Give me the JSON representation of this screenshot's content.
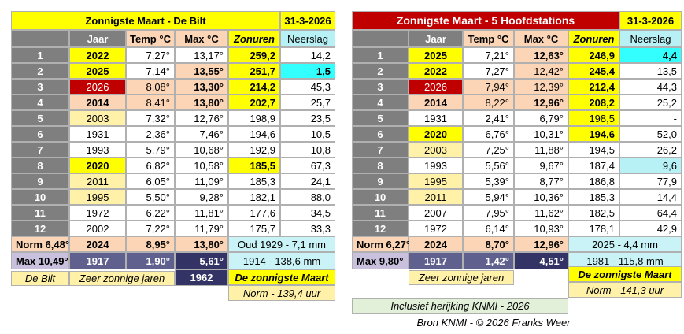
{
  "left": {
    "title": "Zonnigste Maart - De Bilt",
    "date": "31-3-2026",
    "columns": [
      "Jaar",
      "Temp °C",
      "Max °C",
      "Zonuren",
      "Neerslag"
    ],
    "rows": [
      [
        "1",
        "2022",
        "7,27°",
        "13,17°",
        "259,2",
        "14,2"
      ],
      [
        "2",
        "2025",
        "7,14°",
        "13,55°",
        "251,7",
        "1,5"
      ],
      [
        "3",
        "2026",
        "8,08°",
        "13,30°",
        "214,2",
        "45,3"
      ],
      [
        "4",
        "2014",
        "8,41°",
        "13,80°",
        "202,7",
        "25,7"
      ],
      [
        "5",
        "2003",
        "7,32°",
        "12,76°",
        "198,9",
        "23,5"
      ],
      [
        "6",
        "1931",
        "2,36°",
        "7,46°",
        "194,6",
        "10,5"
      ],
      [
        "7",
        "1993",
        "5,79°",
        "10,68°",
        "192,9",
        "10,8"
      ],
      [
        "8",
        "2020",
        "6,82°",
        "10,58°",
        "185,5",
        "67,3"
      ],
      [
        "9",
        "2011",
        "6,05°",
        "11,09°",
        "185,3",
        "24,1"
      ],
      [
        "10",
        "1995",
        "5,50°",
        "9,28°",
        "182,1",
        "88,0"
      ],
      [
        "11",
        "1972",
        "6,22°",
        "11,81°",
        "177,6",
        "34,5"
      ],
      [
        "12",
        "2002",
        "7,22°",
        "11,79°",
        "175,7",
        "33,3"
      ]
    ],
    "norm": [
      "Norm 6,48°",
      "2024",
      "8,95°",
      "13,80°",
      "Oud 1929 - 7,1 mm"
    ],
    "max": [
      "Max 10,49°",
      "1917",
      "1,90°",
      "5,61°",
      "1914 - 138,6 mm"
    ],
    "footer": [
      "De Bilt",
      "Zeer zonnige jaren",
      "1962",
      "De zonnigste Maart"
    ],
    "norm_note": "Norm - 139,4 uur"
  },
  "right": {
    "title": "Zonnigste Maart - 5 Hoofdstations",
    "date": "31-3-2026",
    "columns": [
      "Jaar",
      "Temp °C",
      "Max °C",
      "Zonuren",
      "Neerslag"
    ],
    "rows": [
      [
        "1",
        "2025",
        "7,21°",
        "12,63°",
        "246,9",
        "4,4"
      ],
      [
        "2",
        "2022",
        "7,27°",
        "12,42°",
        "245,4",
        "13,5"
      ],
      [
        "3",
        "2026",
        "7,94°",
        "12,39°",
        "212,4",
        "44,3"
      ],
      [
        "4",
        "2014",
        "8,22°",
        "12,96°",
        "208,2",
        "25,2"
      ],
      [
        "5",
        "1931",
        "2,41°",
        "6,79°",
        "198,5",
        "-"
      ],
      [
        "6",
        "2020",
        "6,76°",
        "10,31°",
        "194,6",
        "52,0"
      ],
      [
        "7",
        "2003",
        "7,25°",
        "11,88°",
        "194,5",
        "26,2"
      ],
      [
        "8",
        "1993",
        "5,56°",
        "9,67°",
        "187,4",
        "9,6"
      ],
      [
        "9",
        "1995",
        "5,39°",
        "8,77°",
        "186,8",
        "77,9"
      ],
      [
        "10",
        "2011",
        "5,94°",
        "10,36°",
        "185,3",
        "14,4"
      ],
      [
        "11",
        "2007",
        "7,95°",
        "11,62°",
        "182,5",
        "64,4"
      ],
      [
        "12",
        "1972",
        "6,14°",
        "10,93°",
        "178,1",
        "42,9"
      ]
    ],
    "norm": [
      "Norm 6,27°",
      "2024",
      "8,70°",
      "12,96°",
      "2025 - 4,4 mm"
    ],
    "max": [
      "Max 9,80°",
      "1917",
      "1,42°",
      "4,51°",
      "1981 - 115,8 mm"
    ],
    "footer": [
      "Zeer zonnige jaren",
      "De zonnigste Maart"
    ],
    "norm_note": "Norm - 141,3 uur"
  },
  "note": "Inclusief herijking KNMI - 2026",
  "source": "Bron KNMI  -  © 2026 Franks Weer"
}
